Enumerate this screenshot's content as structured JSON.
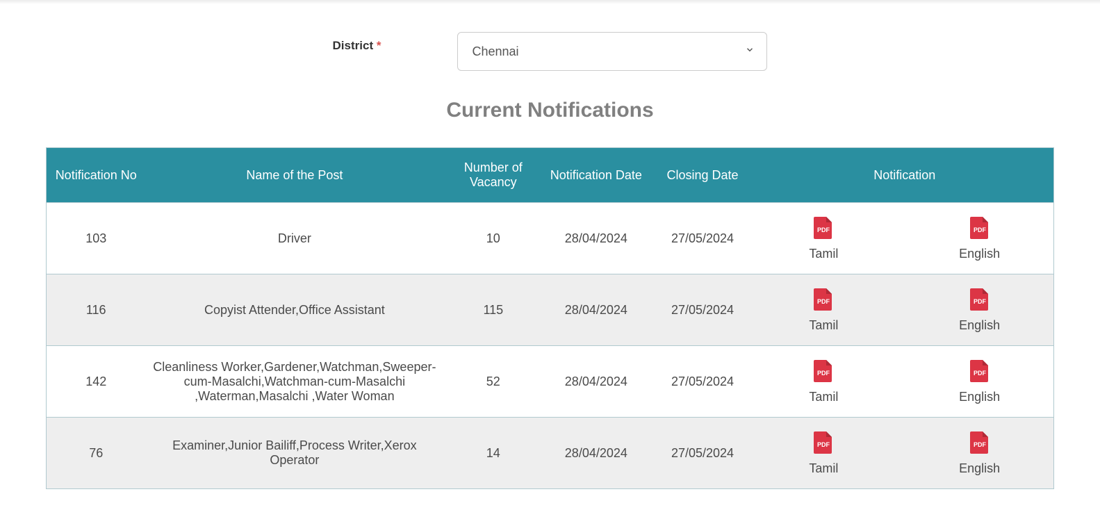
{
  "form": {
    "district_label": "District",
    "required_marker": "*",
    "selected_district": "Chennai"
  },
  "heading": "Current Notifications",
  "table": {
    "headers": {
      "no": "Notification No",
      "post": "Name of the Post",
      "vacancy": "Number of Vacancy",
      "ndate": "Notification Date",
      "cdate": "Closing Date",
      "notif": "Notification"
    },
    "pdf_lang1": "Tamil",
    "pdf_lang2": "English",
    "rows": [
      {
        "no": "103",
        "post": "Driver",
        "vacancy": "10",
        "ndate": "28/04/2024",
        "cdate": "27/05/2024"
      },
      {
        "no": "116",
        "post": "Copyist Attender,Office Assistant",
        "vacancy": "115",
        "ndate": "28/04/2024",
        "cdate": "27/05/2024"
      },
      {
        "no": "142",
        "post": "Cleanliness Worker,Gardener,Watchman,Sweeper-cum-Masalchi,Watchman-cum-Masalchi ,Waterman,Masalchi ,Water Woman",
        "vacancy": "52",
        "ndate": "28/04/2024",
        "cdate": "27/05/2024"
      },
      {
        "no": "76",
        "post": "Examiner,Junior Bailiff,Process Writer,Xerox Operator",
        "vacancy": "14",
        "ndate": "28/04/2024",
        "cdate": "27/05/2024"
      }
    ]
  },
  "style": {
    "header_bg": "#2a8fa0",
    "header_text": "#ffffff",
    "row_odd_bg": "#ffffff",
    "row_even_bg": "#eeeeee",
    "border_color": "#b0c9cf",
    "heading_color": "#808080",
    "pdf_icon_color": "#dc3545",
    "label_color": "#333333"
  }
}
